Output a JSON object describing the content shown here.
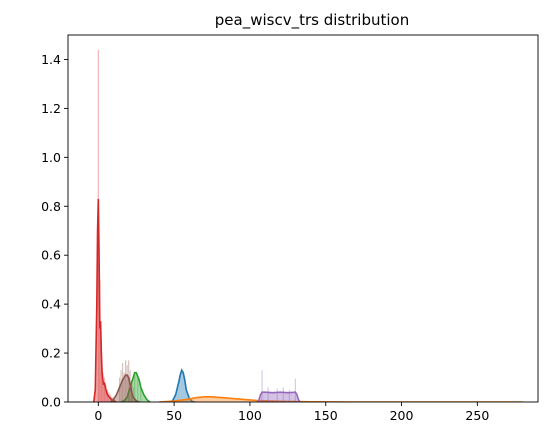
{
  "chart_data": {
    "type": "area",
    "title": "pea_wiscv_trs distribution",
    "xlabel": "",
    "ylabel": "",
    "xlim": [
      -20,
      290
    ],
    "ylim": [
      0,
      1.5
    ],
    "x_ticks": [
      0,
      50,
      100,
      150,
      200,
      250
    ],
    "y_ticks": [
      0.0,
      0.2,
      0.4,
      0.6,
      0.8,
      1.0,
      1.2,
      1.4
    ],
    "grid": false,
    "legend": "none",
    "series": [
      {
        "color": "#1f77b4",
        "kde": [
          [
            46,
            0
          ],
          [
            49,
            0.005
          ],
          [
            51,
            0.03
          ],
          [
            53,
            0.08
          ],
          [
            54,
            0.11
          ],
          [
            55,
            0.13
          ],
          [
            56,
            0.12
          ],
          [
            57,
            0.09
          ],
          [
            58,
            0.05
          ],
          [
            60,
            0.015
          ],
          [
            62,
            0.002
          ],
          [
            64,
            0
          ]
        ],
        "hist": []
      },
      {
        "color": "#ff7f0e",
        "kde": [
          [
            40,
            0
          ],
          [
            50,
            0.004
          ],
          [
            60,
            0.012
          ],
          [
            65,
            0.018
          ],
          [
            70,
            0.021
          ],
          [
            75,
            0.021
          ],
          [
            85,
            0.016
          ],
          [
            95,
            0.011
          ],
          [
            105,
            0.006
          ],
          [
            120,
            0.003
          ],
          [
            140,
            0.001
          ],
          [
            170,
            0.0
          ],
          [
            280,
            0
          ]
        ],
        "hist": []
      },
      {
        "color": "#2ca02c",
        "kde": [
          [
            15,
            0
          ],
          [
            17,
            0.005
          ],
          [
            19,
            0.02
          ],
          [
            21,
            0.06
          ],
          [
            23,
            0.1
          ],
          [
            24,
            0.12
          ],
          [
            25,
            0.12
          ],
          [
            27,
            0.09
          ],
          [
            28,
            0.06
          ],
          [
            30,
            0.03
          ],
          [
            32,
            0.01
          ],
          [
            34,
            0
          ]
        ],
        "hist": [
          [
            20,
            0.05
          ],
          [
            22,
            0.08
          ],
          [
            24,
            0.11
          ],
          [
            26,
            0.1
          ],
          [
            28,
            0.06
          ]
        ]
      },
      {
        "color": "#d62728",
        "kde": [
          [
            -3,
            0
          ],
          [
            -2,
            0.05
          ],
          [
            -1,
            0.4
          ],
          [
            -0.5,
            0.7
          ],
          [
            0,
            0.83
          ],
          [
            0.5,
            0.6
          ],
          [
            1,
            0.3
          ],
          [
            1.5,
            0.33
          ],
          [
            2,
            0.2
          ],
          [
            2.5,
            0.12
          ],
          [
            3,
            0.09
          ],
          [
            3.5,
            0.07
          ],
          [
            4,
            0.08
          ],
          [
            5,
            0.05
          ],
          [
            6,
            0.03
          ],
          [
            8,
            0.015
          ],
          [
            10,
            0.005
          ],
          [
            12,
            0
          ]
        ],
        "hist": [
          [
            0,
            1.44
          ],
          [
            1,
            0.5
          ],
          [
            2,
            0.25
          ],
          [
            3,
            0.12
          ],
          [
            4,
            0.1
          ],
          [
            5,
            0.07
          ],
          [
            6,
            0.05
          ],
          [
            7,
            0.04
          ],
          [
            8,
            0.03
          ],
          [
            9,
            0.02
          ],
          [
            10,
            0.02
          ]
        ]
      },
      {
        "color": "#9467bd",
        "kde": [
          [
            105,
            0
          ],
          [
            106,
            0.01
          ],
          [
            107,
            0.03
          ],
          [
            108,
            0.04
          ],
          [
            110,
            0.04
          ],
          [
            115,
            0.038
          ],
          [
            120,
            0.04
          ],
          [
            125,
            0.038
          ],
          [
            130,
            0.04
          ],
          [
            131,
            0.03
          ],
          [
            132,
            0.01
          ],
          [
            133,
            0
          ]
        ],
        "hist": [
          [
            108,
            0.13
          ],
          [
            112,
            0.06
          ],
          [
            118,
            0.055
          ],
          [
            122,
            0.06
          ],
          [
            126,
            0.05
          ],
          [
            130,
            0.095
          ]
        ]
      },
      {
        "color": "#8c564b",
        "kde": [
          [
            8,
            0
          ],
          [
            10,
            0.01
          ],
          [
            12,
            0.03
          ],
          [
            14,
            0.06
          ],
          [
            16,
            0.09
          ],
          [
            18,
            0.11
          ],
          [
            19,
            0.11
          ],
          [
            20,
            0.1
          ],
          [
            21,
            0.07
          ],
          [
            22,
            0.04
          ],
          [
            23,
            0.02
          ],
          [
            25,
            0.005
          ],
          [
            27,
            0
          ]
        ],
        "hist": [
          [
            14,
            0.1
          ],
          [
            15,
            0.13
          ],
          [
            16,
            0.16
          ],
          [
            17,
            0.12
          ],
          [
            18,
            0.17
          ],
          [
            19,
            0.15
          ],
          [
            20,
            0.17
          ],
          [
            21,
            0.13
          ],
          [
            22,
            0.09
          ],
          [
            23,
            0.06
          ]
        ]
      }
    ]
  }
}
